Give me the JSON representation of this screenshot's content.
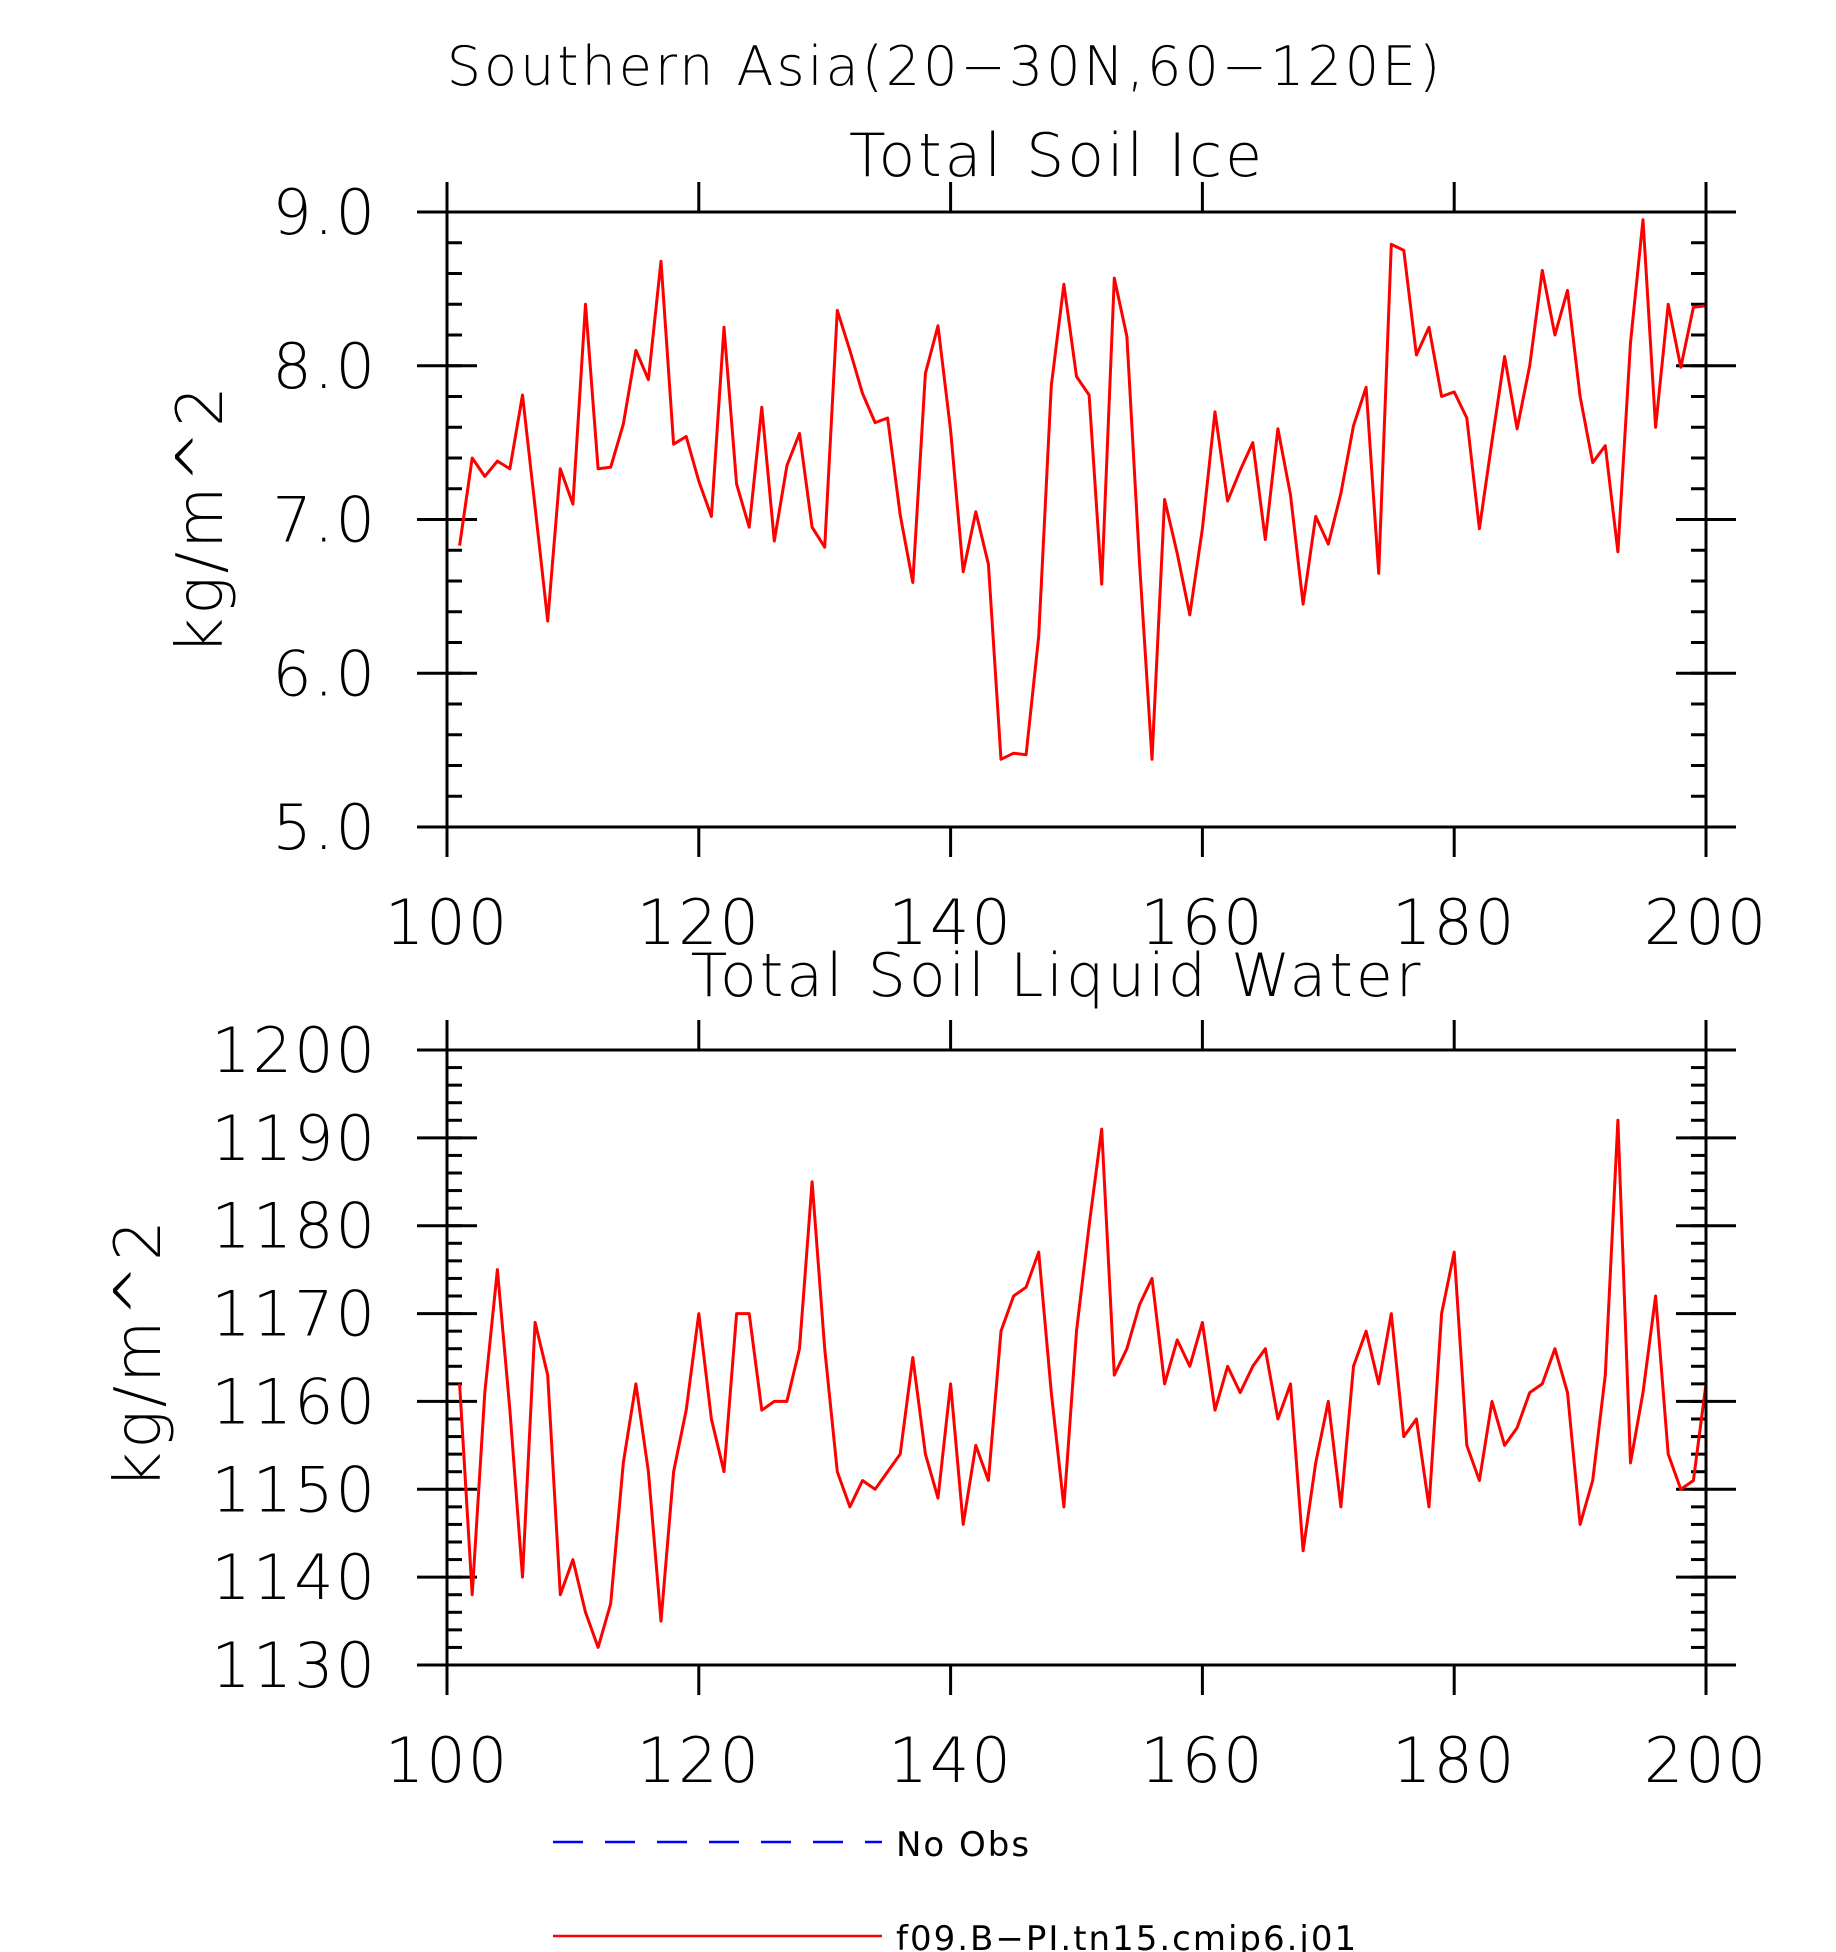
{
  "figure": {
    "title": "Southern Asia(20−30N,60−120E)"
  },
  "colors": {
    "model": "#ff0000",
    "obs": "#0000ff",
    "axis": "#000000"
  },
  "legend": {
    "items": [
      {
        "label": "No Obs",
        "style": "dashed",
        "color": "#0000ff"
      },
      {
        "label": "f09.B−PI.tn15.cmip6.j01",
        "style": "solid",
        "color": "#ff0000"
      }
    ]
  },
  "chart_data": [
    {
      "type": "line",
      "title": "Total Soil Ice",
      "xlabel": "",
      "ylabel": "kg/m^2",
      "xlim": [
        100,
        200
      ],
      "ylim": [
        5.0,
        9.0
      ],
      "xticks": [
        100,
        120,
        140,
        160,
        180,
        200
      ],
      "yticks": [
        5.0,
        6.0,
        7.0,
        8.0,
        9.0
      ],
      "ytick_labels": [
        "5.0",
        "6.0",
        "7.0",
        "8.0",
        "9.0"
      ],
      "y_minor_step": 0.2,
      "x_minor_step": 2,
      "grid": false,
      "series": [
        {
          "name": "f09.B−PI.tn15.cmip6.j01",
          "x_start": 101,
          "x_step": 1,
          "values": [
            6.83,
            7.4,
            7.28,
            7.38,
            7.33,
            7.81,
            7.08,
            6.34,
            7.33,
            7.1,
            8.4,
            7.33,
            7.34,
            7.62,
            8.1,
            7.91,
            8.68,
            7.49,
            7.54,
            7.25,
            7.02,
            8.25,
            7.23,
            6.95,
            7.73,
            6.86,
            7.35,
            7.56,
            6.95,
            6.82,
            8.36,
            8.1,
            7.82,
            7.63,
            7.66,
            7.03,
            6.59,
            7.95,
            8.26,
            7.58,
            6.66,
            7.05,
            6.71,
            5.44,
            5.48,
            5.47,
            6.24,
            7.87,
            8.53,
            7.93,
            7.81,
            6.58,
            8.57,
            8.19,
            6.72,
            5.44,
            7.13,
            6.78,
            6.38,
            6.94,
            7.7,
            7.12,
            7.32,
            7.5,
            6.87,
            7.59,
            7.16,
            6.45,
            7.02,
            6.84,
            7.17,
            7.61,
            7.86,
            6.65,
            8.79,
            8.75,
            8.07,
            8.25,
            7.8,
            7.83,
            7.66,
            6.94,
            7.51,
            8.06,
            7.59,
            8.0,
            8.62,
            8.2,
            8.49,
            7.8,
            7.37,
            7.48,
            6.79,
            8.15,
            8.95,
            7.6,
            8.4,
            7.99,
            8.38,
            8.39
          ]
        }
      ]
    },
    {
      "type": "line",
      "title": "Total Soil Liquid Water",
      "xlabel": "",
      "ylabel": "kg/m^2",
      "xlim": [
        100,
        200
      ],
      "ylim": [
        1130,
        1200
      ],
      "xticks": [
        100,
        120,
        140,
        160,
        180,
        200
      ],
      "yticks": [
        1130,
        1140,
        1150,
        1160,
        1170,
        1180,
        1190,
        1200
      ],
      "ytick_labels": [
        "1130",
        "1140",
        "1150",
        "1160",
        "1170",
        "1180",
        "1190",
        "1200"
      ],
      "y_minor_step": 2,
      "x_minor_step": 2,
      "grid": false,
      "series": [
        {
          "name": "f09.B−PI.tn15.cmip6.j01",
          "x_start": 101,
          "x_step": 1,
          "values": [
            1162,
            1138,
            1161,
            1175,
            1159,
            1140,
            1169,
            1163,
            1138,
            1142,
            1136,
            1132,
            1137,
            1153,
            1162,
            1152,
            1135,
            1152,
            1159,
            1170,
            1158,
            1152,
            1170,
            1170,
            1159,
            1160,
            1160,
            1166,
            1185,
            1166,
            1152,
            1148,
            1151,
            1150,
            1152,
            1154,
            1165,
            1154,
            1149,
            1162,
            1146,
            1155,
            1151,
            1168,
            1172,
            1173,
            1177,
            1161,
            1148,
            1168,
            1180,
            1191,
            1163,
            1166,
            1171,
            1174,
            1162,
            1167,
            1164,
            1169,
            1159,
            1164,
            1161,
            1164,
            1166,
            1158,
            1162,
            1143,
            1153,
            1160,
            1148,
            1164,
            1168,
            1162,
            1170,
            1156,
            1158,
            1148,
            1170,
            1177,
            1155,
            1151,
            1160,
            1155,
            1157,
            1161,
            1162,
            1166,
            1161,
            1146,
            1151,
            1163,
            1192,
            1153,
            1161,
            1172,
            1154,
            1150,
            1151,
            1162
          ]
        }
      ]
    }
  ]
}
